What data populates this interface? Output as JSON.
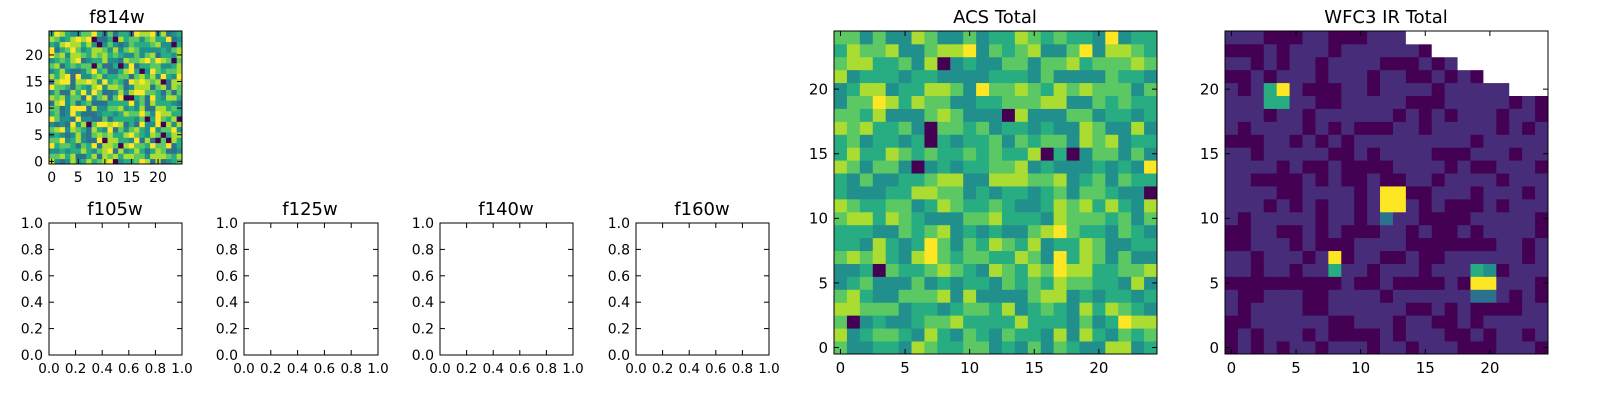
{
  "colors": {
    "viridis": [
      "#440154",
      "#472c7a",
      "#3b518b",
      "#2c718e",
      "#21908d",
      "#27ad81",
      "#5cc863",
      "#aadc32",
      "#fde725"
    ],
    "axis": "#000000",
    "background": "#ffffff"
  },
  "chart_data": [
    {
      "type": "heatmap",
      "title": "f814w",
      "nx": 25,
      "ny": 25,
      "xlim": [
        -0.5,
        24.5
      ],
      "ylim": [
        -0.5,
        24.5
      ],
      "xticks": [
        0,
        5,
        10,
        15,
        20
      ],
      "yticks": [
        0,
        5,
        10,
        15,
        20
      ],
      "xtick_labels": [
        "0",
        "5",
        "10",
        "15",
        "20"
      ],
      "ytick_labels": [
        "0",
        "5",
        "10",
        "15",
        "20"
      ],
      "pattern": "noise",
      "seed": 11,
      "description_values": {
        "low": 0.0,
        "high": 1.0
      }
    },
    {
      "type": "empty",
      "title": "f105w",
      "xlim": [
        0,
        1
      ],
      "ylim": [
        0,
        1
      ],
      "xtick_labels": [
        "0.0",
        "0.2",
        "0.4",
        "0.6",
        "0.8",
        "1.0"
      ],
      "ytick_labels": [
        "0.0",
        "0.2",
        "0.4",
        "0.6",
        "0.8",
        "1.0"
      ]
    },
    {
      "type": "empty",
      "title": "f125w",
      "xlim": [
        0,
        1
      ],
      "ylim": [
        0,
        1
      ],
      "xtick_labels": [
        "0.0",
        "0.2",
        "0.4",
        "0.6",
        "0.8",
        "1.0"
      ],
      "ytick_labels": [
        "0.0",
        "0.2",
        "0.4",
        "0.6",
        "0.8",
        "1.0"
      ]
    },
    {
      "type": "empty",
      "title": "f140w",
      "xlim": [
        0,
        1
      ],
      "ylim": [
        0,
        1
      ],
      "xtick_labels": [
        "0.0",
        "0.2",
        "0.4",
        "0.6",
        "0.8",
        "1.0"
      ],
      "ytick_labels": [
        "0.0",
        "0.2",
        "0.4",
        "0.6",
        "0.8",
        "1.0"
      ]
    },
    {
      "type": "empty",
      "title": "f160w",
      "xlim": [
        0,
        1
      ],
      "ylim": [
        0,
        1
      ],
      "xtick_labels": [
        "0.0",
        "0.2",
        "0.4",
        "0.6",
        "0.8",
        "1.0"
      ],
      "ytick_labels": [
        "0.0",
        "0.2",
        "0.4",
        "0.6",
        "0.8",
        "1.0"
      ]
    },
    {
      "type": "heatmap",
      "title": "ACS Total",
      "nx": 25,
      "ny": 25,
      "xlim": [
        -0.5,
        24.5
      ],
      "ylim": [
        -0.5,
        24.5
      ],
      "xticks": [
        0,
        5,
        10,
        15,
        20
      ],
      "yticks": [
        0,
        5,
        10,
        15,
        20
      ],
      "xtick_labels": [
        "0",
        "5",
        "10",
        "15",
        "20"
      ],
      "ytick_labels": [
        "0",
        "5",
        "10",
        "15",
        "20"
      ],
      "pattern": "noise-high",
      "seed": 7,
      "dark_cells": [
        [
          1,
          2
        ],
        [
          7,
          16
        ],
        [
          7,
          17
        ],
        [
          6,
          14
        ],
        [
          16,
          15
        ],
        [
          18,
          15
        ],
        [
          8,
          22
        ],
        [
          3,
          6
        ],
        [
          24,
          12
        ],
        [
          13,
          18
        ]
      ],
      "bright_cells": [
        [
          10,
          23
        ],
        [
          19,
          23
        ],
        [
          21,
          24
        ],
        [
          11,
          20
        ],
        [
          3,
          19
        ],
        [
          7,
          8
        ],
        [
          7,
          7
        ],
        [
          17,
          9
        ],
        [
          17,
          7
        ],
        [
          17,
          6
        ],
        [
          24,
          14
        ],
        [
          22,
          2
        ]
      ]
    },
    {
      "type": "heatmap",
      "title": "WFC3 IR Total",
      "nx": 25,
      "ny": 25,
      "xlim": [
        -0.5,
        24.5
      ],
      "ylim": [
        -0.5,
        24.5
      ],
      "xticks": [
        0,
        5,
        10,
        15,
        20
      ],
      "yticks": [
        0,
        5,
        10,
        15,
        20
      ],
      "xtick_labels": [
        "0",
        "5",
        "10",
        "15",
        "20"
      ],
      "ytick_labels": [
        "0",
        "5",
        "10",
        "15",
        "20"
      ],
      "pattern": "background-low",
      "seed": 3,
      "sources": [
        {
          "x": 4,
          "y": 20,
          "value": 1.0
        },
        {
          "x": 3,
          "y": 20,
          "value": 0.6
        },
        {
          "x": 3,
          "y": 19,
          "value": 0.6
        },
        {
          "x": 4,
          "y": 19,
          "value": 0.6
        },
        {
          "x": 12,
          "y": 12,
          "value": 1.0
        },
        {
          "x": 13,
          "y": 12,
          "value": 1.0
        },
        {
          "x": 12,
          "y": 11,
          "value": 1.0
        },
        {
          "x": 13,
          "y": 11,
          "value": 1.0
        },
        {
          "x": 12,
          "y": 10,
          "value": 0.4
        },
        {
          "x": 8,
          "y": 7,
          "value": 1.0
        },
        {
          "x": 8,
          "y": 6,
          "value": 0.6
        },
        {
          "x": 19,
          "y": 5,
          "value": 1.0
        },
        {
          "x": 20,
          "y": 5,
          "value": 1.0
        },
        {
          "x": 19,
          "y": 6,
          "value": 0.6
        },
        {
          "x": 20,
          "y": 6,
          "value": 0.5
        },
        {
          "x": 19,
          "y": 4,
          "value": 0.35
        },
        {
          "x": 20,
          "y": 4,
          "value": 0.35
        }
      ],
      "nan_cells_note": "upper-right corner unobserved (white)",
      "nan_region": [
        {
          "y_from": 24,
          "x_from": 14
        },
        {
          "y_from": 23,
          "x_from": 16
        },
        {
          "y_from": 22,
          "x_from": 18
        },
        {
          "y_from": 21,
          "x_from": 20
        },
        {
          "y_from": 20,
          "x_from": 22
        }
      ]
    }
  ]
}
